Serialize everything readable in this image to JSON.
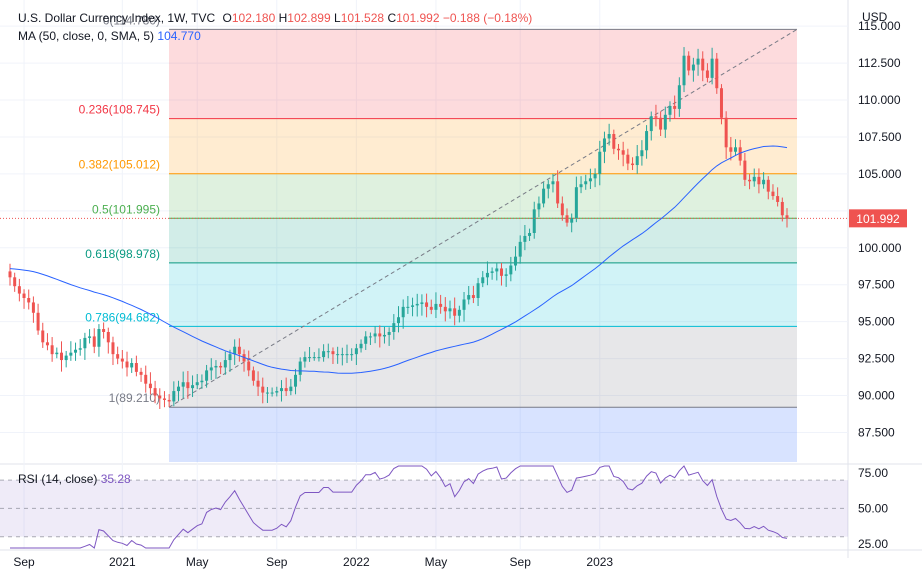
{
  "legend": {
    "symbol": "U.S. Dollar Currency Index, 1W, TVC",
    "open_label": "O",
    "open": "102.180",
    "high_label": "H",
    "high": "102.899",
    "low_label": "L",
    "low": "101.528",
    "close_label": "C",
    "close": "101.992",
    "change": "−0.188 (−0.18%)",
    "ma_label": "MA (50, close, 0, SMA, 5)",
    "ma_value": "104.770",
    "rsi_label": "RSI (14, close)",
    "rsi_value": "35.28"
  },
  "currency_label": "USD",
  "price_tag": "101.992",
  "colors": {
    "up": "#26a69a",
    "down": "#ef5350",
    "ma": "#2962ff",
    "rsi": "#7e57c2",
    "axis_text": "#131722",
    "grid": "#f0f3fa",
    "trend": "#787b86"
  },
  "chart_data": [
    {
      "type": "candlestick",
      "title": "U.S. Dollar Currency Index, 1W, TVC",
      "ylim": [
        85.5,
        116.5
      ],
      "y_ticks": [
        "115.000",
        "112.500",
        "110.000",
        "107.500",
        "105.000",
        "102.500",
        "100.000",
        "97.500",
        "95.000",
        "92.500",
        "90.000",
        "87.500"
      ],
      "x_ticks": [
        "Sep",
        "2021",
        "May",
        "Sep",
        "2022",
        "May",
        "Sep",
        "2023"
      ],
      "last_close": 101.992,
      "closes": [
        98.0,
        97.4,
        96.9,
        96.6,
        96.3,
        95.6,
        94.4,
        93.6,
        93.4,
        92.8,
        92.9,
        92.4,
        92.7,
        92.9,
        93.1,
        93.2,
        93.9,
        94.0,
        93.3,
        94.5,
        94.3,
        93.6,
        92.8,
        92.5,
        92.3,
        91.9,
        92.2,
        91.6,
        91.4,
        90.8,
        90.5,
        90.0,
        89.8,
        89.7,
        89.6,
        90.3,
        90.6,
        90.9,
        90.5,
        90.7,
        90.9,
        91.0,
        91.7,
        91.9,
        92.0,
        91.9,
        92.4,
        92.8,
        93.3,
        92.8,
        92.3,
        91.7,
        91.0,
        90.6,
        90.2,
        90.2,
        90.2,
        90.3,
        90.5,
        90.3,
        90.6,
        91.4,
        92.3,
        92.6,
        92.6,
        92.6,
        92.6,
        93.0,
        93.0,
        92.8,
        92.8,
        92.8,
        92.8,
        92.8,
        93.2,
        93.5,
        94.0,
        94.0,
        94.2,
        94.0,
        94.1,
        94.3,
        94.9,
        95.3,
        96.0,
        96.0,
        96.1,
        96.2,
        96.3,
        96.0,
        95.8,
        96.2,
        96.0,
        95.7,
        95.9,
        95.4,
        95.8,
        96.5,
        96.8,
        96.6,
        97.6,
        98.0,
        98.3,
        98.4,
        98.6,
        98.1,
        98.2,
        98.8,
        99.4,
        100.4,
        100.8,
        101.0,
        102.6,
        103.0,
        104.0,
        104.3,
        104.5,
        103.0,
        102.2,
        101.7,
        102.0,
        104.1,
        104.3,
        104.5,
        104.7,
        105.0,
        106.5,
        107.4,
        107.7,
        106.7,
        106.6,
        106.3,
        105.7,
        105.6,
        106.2,
        106.6,
        107.9,
        108.9,
        108.8,
        108.0,
        109.0,
        109.6,
        109.4,
        111.0,
        113.0,
        112.0,
        112.4,
        112.8,
        112.0,
        111.5,
        112.8,
        110.8,
        108.8,
        106.8,
        106.5,
        106.8,
        105.9,
        104.6,
        104.5,
        104.8,
        104.3,
        104.6,
        103.8,
        103.5,
        103.1,
        102.2,
        101.992
      ]
    },
    {
      "type": "line",
      "series": [
        {
          "name": "MA (50, close, 0, SMA, 5)",
          "last": 104.77
        }
      ]
    },
    {
      "type": "fibonacci_retracement",
      "levels": [
        {
          "ratio": "0",
          "label": "0(114.780)",
          "value": 114.78
        },
        {
          "ratio": "0.236",
          "label": "0.236(108.745)",
          "value": 108.745
        },
        {
          "ratio": "0.382",
          "label": "0.382(105.012)",
          "value": 105.012
        },
        {
          "ratio": "0.5",
          "label": "0.5(101.995)",
          "value": 101.995
        },
        {
          "ratio": "0.618",
          "label": "0.618(98.978)",
          "value": 98.978
        },
        {
          "ratio": "0.786",
          "label": "0.786(94.682)",
          "value": 94.682
        },
        {
          "ratio": "1",
          "label": "1(89.210)",
          "value": 89.21
        }
      ]
    },
    {
      "type": "line",
      "title": "RSI (14, close)",
      "ylim": [
        22,
        80
      ],
      "y_ticks": [
        "75.00",
        "50.00",
        "25.00"
      ],
      "bands": [
        30,
        50,
        70
      ],
      "last": 35.28
    }
  ]
}
